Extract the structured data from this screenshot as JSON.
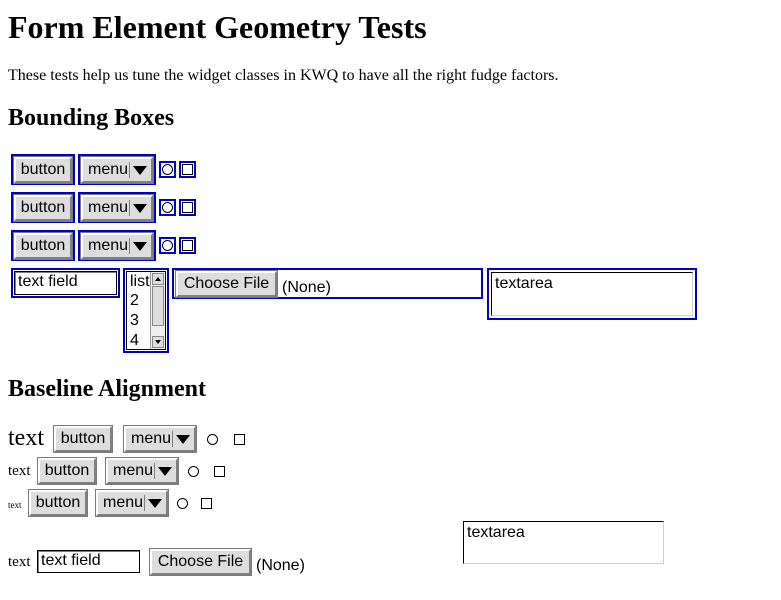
{
  "page": {
    "title": "Form Element Geometry Tests",
    "intro": "These tests help us tune the widget classes in KWQ to have all the right fudge factors."
  },
  "bounding": {
    "heading": "Bounding Boxes",
    "button_label": "button",
    "menu_label": "menu",
    "text_field_value": "text field",
    "list_options": [
      "list",
      "2",
      "3",
      "4"
    ],
    "file_button_label": "Choose File",
    "file_status": "(None)",
    "textarea_value": "textarea"
  },
  "baseline": {
    "heading": "Baseline Alignment",
    "text_label": "text",
    "button_label": "button",
    "menu_label": "menu",
    "text_field_value": "text field",
    "file_button_label": "Choose File",
    "file_status": "(None)",
    "textarea_value": "textarea"
  },
  "colors": {
    "outline": "#0000c8",
    "button_face": "#dddddd"
  }
}
